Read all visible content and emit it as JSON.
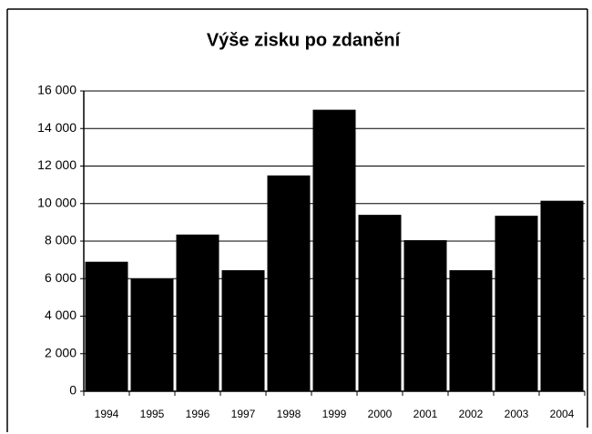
{
  "chart_data": {
    "type": "bar",
    "title": "Výše zisku po zdanění",
    "categories": [
      "1994",
      "1995",
      "1996",
      "1997",
      "1998",
      "1999",
      "2000",
      "2001",
      "2002",
      "2003",
      "2004"
    ],
    "values": [
      6900,
      6000,
      8350,
      6450,
      11500,
      15000,
      9400,
      8050,
      6450,
      9350,
      10150
    ],
    "color": "#000000",
    "ylim": [
      0,
      16000
    ],
    "yticks": [
      0,
      {
        "value": 2000,
        "label": "2 000"
      },
      {
        "value": 4000,
        "label": "4 000"
      },
      {
        "value": 6000,
        "label": "6 000"
      },
      {
        "value": 8000,
        "label": "8 000"
      },
      {
        "value": 10000,
        "label": "10 000"
      },
      {
        "value": 12000,
        "label": "12 000"
      },
      {
        "value": 14000,
        "label": "14 000"
      },
      {
        "value": 16000,
        "label": "16 000"
      }
    ],
    "grid": true
  }
}
